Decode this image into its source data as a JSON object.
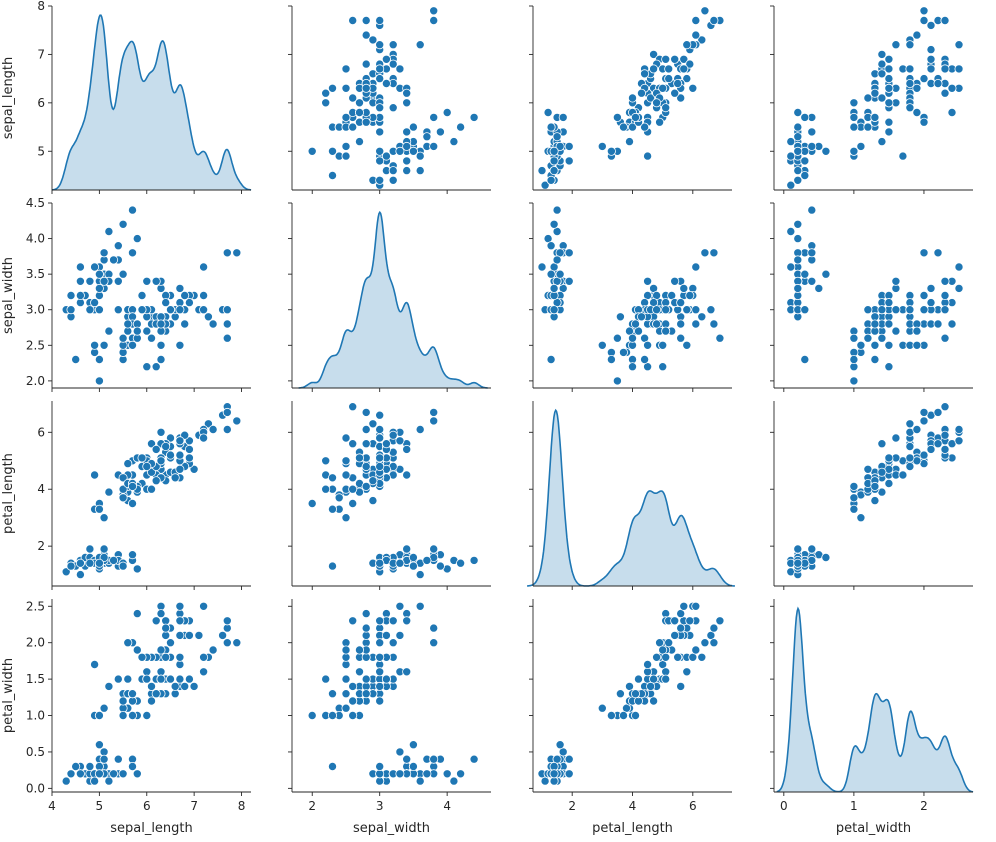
{
  "chart_data": {
    "type": "scatter",
    "variables": [
      "sepal_length",
      "sepal_width",
      "petal_length",
      "petal_width"
    ],
    "ranges": {
      "sepal_length": [
        4.3,
        7.9
      ],
      "sepal_width": [
        2.0,
        4.4
      ],
      "petal_length": [
        1.0,
        6.9
      ],
      "petal_width": [
        0.1,
        2.5
      ]
    },
    "x_ticks": {
      "sepal_length": [
        "4",
        "5",
        "6",
        "7",
        "8"
      ],
      "sepal_width": [
        "2",
        "3",
        "4"
      ],
      "petal_length": [
        "2",
        "4",
        "6"
      ],
      "petal_width": [
        "0",
        "1",
        "2"
      ]
    },
    "y_ticks": {
      "sepal_length": [
        "5",
        "6",
        "7",
        "8"
      ],
      "sepal_width": [
        "2.0",
        "2.5",
        "3.0",
        "3.5",
        "4.0",
        "4.5"
      ],
      "petal_length": [
        "2",
        "4",
        "6"
      ],
      "petal_width": [
        "0.0",
        "0.5",
        "1.0",
        "1.5",
        "2.0",
        "2.5"
      ]
    },
    "diagonal": "kde",
    "offdiagonal": "scatter",
    "color": "#1f77b4",
    "kde_fill": "#1f77b4",
    "kde_fill_opacity": 0.25,
    "marker_edge": "#ffffff",
    "grid": false,
    "legend": "none",
    "observations": [
      [
        5.1,
        3.5,
        1.4,
        0.2
      ],
      [
        4.9,
        3.0,
        1.4,
        0.2
      ],
      [
        4.7,
        3.2,
        1.3,
        0.2
      ],
      [
        4.6,
        3.1,
        1.5,
        0.2
      ],
      [
        5.0,
        3.6,
        1.4,
        0.2
      ],
      [
        5.4,
        3.9,
        1.7,
        0.4
      ],
      [
        4.6,
        3.4,
        1.4,
        0.3
      ],
      [
        5.0,
        3.4,
        1.5,
        0.2
      ],
      [
        4.4,
        2.9,
        1.4,
        0.2
      ],
      [
        4.9,
        3.1,
        1.5,
        0.1
      ],
      [
        5.4,
        3.7,
        1.5,
        0.2
      ],
      [
        4.8,
        3.4,
        1.6,
        0.2
      ],
      [
        4.8,
        3.0,
        1.4,
        0.1
      ],
      [
        4.3,
        3.0,
        1.1,
        0.1
      ],
      [
        5.8,
        4.0,
        1.2,
        0.2
      ],
      [
        5.7,
        4.4,
        1.5,
        0.4
      ],
      [
        5.4,
        3.9,
        1.3,
        0.4
      ],
      [
        5.1,
        3.5,
        1.4,
        0.3
      ],
      [
        5.7,
        3.8,
        1.7,
        0.3
      ],
      [
        5.1,
        3.8,
        1.5,
        0.3
      ],
      [
        5.4,
        3.4,
        1.7,
        0.2
      ],
      [
        5.1,
        3.7,
        1.5,
        0.4
      ],
      [
        4.6,
        3.6,
        1.0,
        0.2
      ],
      [
        5.1,
        3.3,
        1.7,
        0.5
      ],
      [
        4.8,
        3.4,
        1.9,
        0.2
      ],
      [
        5.0,
        3.0,
        1.6,
        0.2
      ],
      [
        5.0,
        3.4,
        1.6,
        0.4
      ],
      [
        5.2,
        3.5,
        1.5,
        0.2
      ],
      [
        5.2,
        3.4,
        1.4,
        0.2
      ],
      [
        4.7,
        3.2,
        1.6,
        0.2
      ],
      [
        4.8,
        3.1,
        1.6,
        0.2
      ],
      [
        5.4,
        3.4,
        1.5,
        0.4
      ],
      [
        5.2,
        4.1,
        1.5,
        0.1
      ],
      [
        5.5,
        4.2,
        1.4,
        0.2
      ],
      [
        4.9,
        3.1,
        1.5,
        0.2
      ],
      [
        5.0,
        3.2,
        1.2,
        0.2
      ],
      [
        5.5,
        3.5,
        1.3,
        0.2
      ],
      [
        4.9,
        3.6,
        1.4,
        0.1
      ],
      [
        4.4,
        3.0,
        1.3,
        0.2
      ],
      [
        5.1,
        3.4,
        1.5,
        0.2
      ],
      [
        5.0,
        3.5,
        1.3,
        0.3
      ],
      [
        4.5,
        2.3,
        1.3,
        0.3
      ],
      [
        4.4,
        3.2,
        1.3,
        0.2
      ],
      [
        5.0,
        3.5,
        1.6,
        0.6
      ],
      [
        5.1,
        3.8,
        1.9,
        0.4
      ],
      [
        4.8,
        3.0,
        1.4,
        0.3
      ],
      [
        5.1,
        3.8,
        1.6,
        0.2
      ],
      [
        4.6,
        3.2,
        1.4,
        0.2
      ],
      [
        5.3,
        3.7,
        1.5,
        0.2
      ],
      [
        5.0,
        3.3,
        1.4,
        0.2
      ],
      [
        7.0,
        3.2,
        4.7,
        1.4
      ],
      [
        6.4,
        3.2,
        4.5,
        1.5
      ],
      [
        6.9,
        3.1,
        4.9,
        1.5
      ],
      [
        5.5,
        2.3,
        4.0,
        1.3
      ],
      [
        6.5,
        2.8,
        4.6,
        1.5
      ],
      [
        5.7,
        2.8,
        4.5,
        1.3
      ],
      [
        6.3,
        3.3,
        4.7,
        1.6
      ],
      [
        4.9,
        2.4,
        3.3,
        1.0
      ],
      [
        6.6,
        2.9,
        4.6,
        1.3
      ],
      [
        5.2,
        2.7,
        3.9,
        1.4
      ],
      [
        5.0,
        2.0,
        3.5,
        1.0
      ],
      [
        5.9,
        3.0,
        4.2,
        1.5
      ],
      [
        6.0,
        2.2,
        4.0,
        1.0
      ],
      [
        6.1,
        2.9,
        4.7,
        1.4
      ],
      [
        5.6,
        2.9,
        3.6,
        1.3
      ],
      [
        6.7,
        3.1,
        4.4,
        1.4
      ],
      [
        5.6,
        3.0,
        4.5,
        1.5
      ],
      [
        5.8,
        2.7,
        4.1,
        1.0
      ],
      [
        6.2,
        2.2,
        4.5,
        1.5
      ],
      [
        5.6,
        2.5,
        3.9,
        1.1
      ],
      [
        5.9,
        3.2,
        4.8,
        1.8
      ],
      [
        6.1,
        2.8,
        4.0,
        1.3
      ],
      [
        6.3,
        2.5,
        4.9,
        1.5
      ],
      [
        6.1,
        2.8,
        4.7,
        1.2
      ],
      [
        6.4,
        2.9,
        4.3,
        1.3
      ],
      [
        6.6,
        3.0,
        4.4,
        1.4
      ],
      [
        6.8,
        2.8,
        4.8,
        1.4
      ],
      [
        6.7,
        3.0,
        5.0,
        1.7
      ],
      [
        6.0,
        2.9,
        4.5,
        1.5
      ],
      [
        5.7,
        2.6,
        3.5,
        1.0
      ],
      [
        5.5,
        2.4,
        3.8,
        1.1
      ],
      [
        5.5,
        2.4,
        3.7,
        1.0
      ],
      [
        5.8,
        2.7,
        3.9,
        1.2
      ],
      [
        6.0,
        2.7,
        5.1,
        1.6
      ],
      [
        5.4,
        3.0,
        4.5,
        1.5
      ],
      [
        6.0,
        3.4,
        4.5,
        1.6
      ],
      [
        6.7,
        3.1,
        4.7,
        1.5
      ],
      [
        6.3,
        2.3,
        4.4,
        1.3
      ],
      [
        5.6,
        3.0,
        4.1,
        1.3
      ],
      [
        5.5,
        2.5,
        4.0,
        1.3
      ],
      [
        5.5,
        2.6,
        4.4,
        1.2
      ],
      [
        6.1,
        3.0,
        4.6,
        1.4
      ],
      [
        5.8,
        2.6,
        4.0,
        1.2
      ],
      [
        5.0,
        2.3,
        3.3,
        1.0
      ],
      [
        5.6,
        2.7,
        4.2,
        1.3
      ],
      [
        5.7,
        3.0,
        4.2,
        1.2
      ],
      [
        5.7,
        2.9,
        4.2,
        1.3
      ],
      [
        6.2,
        2.9,
        4.3,
        1.3
      ],
      [
        5.1,
        2.5,
        3.0,
        1.1
      ],
      [
        5.7,
        2.8,
        4.1,
        1.3
      ],
      [
        6.3,
        3.3,
        6.0,
        2.5
      ],
      [
        5.8,
        2.7,
        5.1,
        1.9
      ],
      [
        7.1,
        3.0,
        5.9,
        2.1
      ],
      [
        6.3,
        2.9,
        5.6,
        1.8
      ],
      [
        6.5,
        3.0,
        5.8,
        2.2
      ],
      [
        7.6,
        3.0,
        6.6,
        2.1
      ],
      [
        4.9,
        2.5,
        4.5,
        1.7
      ],
      [
        7.3,
        2.9,
        6.3,
        1.8
      ],
      [
        6.7,
        2.5,
        5.8,
        1.8
      ],
      [
        7.2,
        3.6,
        6.1,
        2.5
      ],
      [
        6.5,
        3.2,
        5.1,
        2.0
      ],
      [
        6.4,
        2.7,
        5.3,
        1.9
      ],
      [
        6.8,
        3.0,
        5.5,
        2.1
      ],
      [
        5.7,
        2.5,
        5.0,
        2.0
      ],
      [
        5.8,
        2.8,
        5.1,
        2.4
      ],
      [
        6.4,
        3.2,
        5.3,
        2.3
      ],
      [
        6.5,
        3.0,
        5.5,
        1.8
      ],
      [
        7.7,
        3.8,
        6.7,
        2.2
      ],
      [
        7.7,
        2.6,
        6.9,
        2.3
      ],
      [
        6.0,
        2.2,
        5.0,
        1.5
      ],
      [
        6.9,
        3.2,
        5.7,
        2.3
      ],
      [
        5.6,
        2.8,
        4.9,
        2.0
      ],
      [
        7.7,
        2.8,
        6.7,
        2.0
      ],
      [
        6.3,
        2.7,
        4.9,
        1.8
      ],
      [
        6.7,
        3.3,
        5.7,
        2.1
      ],
      [
        7.2,
        3.2,
        6.0,
        1.8
      ],
      [
        6.2,
        2.8,
        4.8,
        1.8
      ],
      [
        6.1,
        3.0,
        4.9,
        1.8
      ],
      [
        6.4,
        2.8,
        5.6,
        2.1
      ],
      [
        7.2,
        3.0,
        5.8,
        1.6
      ],
      [
        7.4,
        2.8,
        6.1,
        1.9
      ],
      [
        7.9,
        3.8,
        6.4,
        2.0
      ],
      [
        6.4,
        2.8,
        5.6,
        2.2
      ],
      [
        6.3,
        2.8,
        5.1,
        1.5
      ],
      [
        6.1,
        2.6,
        5.6,
        1.4
      ],
      [
        7.7,
        3.0,
        6.1,
        2.3
      ],
      [
        6.3,
        3.4,
        5.6,
        2.4
      ],
      [
        6.4,
        3.1,
        5.5,
        1.8
      ],
      [
        6.0,
        3.0,
        4.8,
        1.8
      ],
      [
        6.9,
        3.1,
        5.4,
        2.1
      ],
      [
        6.7,
        3.1,
        5.6,
        2.4
      ],
      [
        6.9,
        3.1,
        5.1,
        2.3
      ],
      [
        5.8,
        2.7,
        5.1,
        1.9
      ],
      [
        6.8,
        3.2,
        5.9,
        2.3
      ],
      [
        6.7,
        3.3,
        5.7,
        2.5
      ],
      [
        6.7,
        3.0,
        5.2,
        2.3
      ],
      [
        6.3,
        2.5,
        5.0,
        1.9
      ],
      [
        6.5,
        3.0,
        5.2,
        2.0
      ],
      [
        6.2,
        3.4,
        5.4,
        2.3
      ],
      [
        5.9,
        3.0,
        5.1,
        1.8
      ]
    ]
  }
}
